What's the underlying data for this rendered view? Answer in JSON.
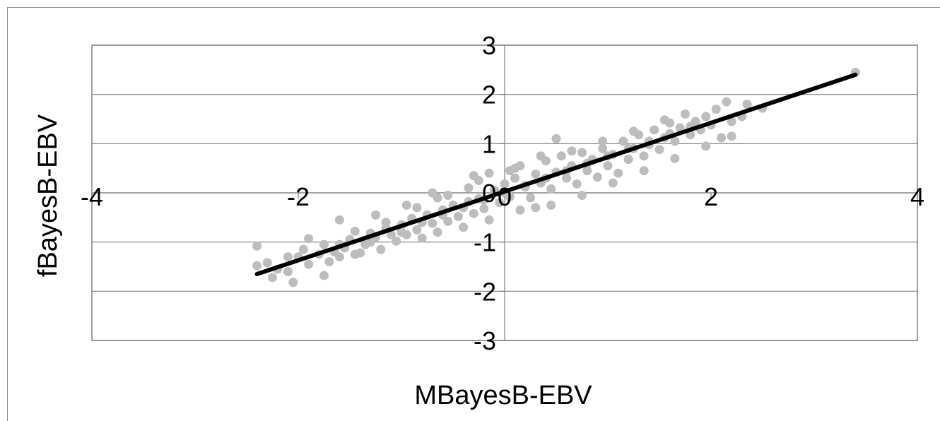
{
  "chart_data": {
    "type": "scatter",
    "xlabel": "MBayesB-EBV",
    "ylabel": "fBayesB-EBV",
    "xlim": [
      -4,
      4
    ],
    "ylim": [
      -3,
      3
    ],
    "x_ticks": [
      -4,
      -2,
      0,
      2,
      4
    ],
    "y_ticks": [
      -3,
      -2,
      -1,
      0,
      1,
      2,
      3
    ],
    "x_tick_labels": [
      "-4",
      "-2",
      "0",
      "2",
      "4"
    ],
    "y_tick_labels": [
      "-3",
      "-2",
      "-1",
      "0",
      "1",
      "2",
      "3"
    ],
    "grid": "horizontal",
    "legend": "none",
    "colors": {
      "points": "#bdbdbd",
      "trend": "#000000",
      "grid": "#808080",
      "axis": "#808080"
    },
    "trend_line": {
      "x": [
        -2.4,
        3.4
      ],
      "y": [
        -1.65,
        2.4
      ]
    },
    "series": [
      {
        "type": "scatter",
        "points": [
          [
            -2.4,
            -1.08
          ],
          [
            -2.4,
            -1.48
          ],
          [
            -2.3,
            -1.42
          ],
          [
            -2.25,
            -1.72
          ],
          [
            -2.2,
            -1.55
          ],
          [
            -2.1,
            -1.6
          ],
          [
            -2.05,
            -1.82
          ],
          [
            -2.1,
            -1.3
          ],
          [
            -1.95,
            -1.15
          ],
          [
            -1.9,
            -0.93
          ],
          [
            -1.8,
            -1.25
          ],
          [
            -1.75,
            -1.68
          ],
          [
            -1.7,
            -1.4
          ],
          [
            -1.65,
            -1.2
          ],
          [
            -1.6,
            -1.05
          ],
          [
            -1.55,
            -1.12
          ],
          [
            -1.5,
            -0.95
          ],
          [
            -1.45,
            -0.78
          ],
          [
            -1.4,
            -1.22
          ],
          [
            -1.35,
            -1.05
          ],
          [
            -1.3,
            -0.82
          ],
          [
            -1.25,
            -0.9
          ],
          [
            -1.2,
            -1.15
          ],
          [
            -1.15,
            -0.72
          ],
          [
            -1.1,
            -0.85
          ],
          [
            -1.05,
            -0.98
          ],
          [
            -1.0,
            -0.65
          ],
          [
            -0.95,
            -0.85
          ],
          [
            -0.9,
            -0.52
          ],
          [
            -0.85,
            -0.75
          ],
          [
            -0.8,
            -0.92
          ],
          [
            -0.75,
            -0.45
          ],
          [
            -0.7,
            -0.62
          ],
          [
            -0.65,
            -0.8
          ],
          [
            -0.6,
            -0.35
          ],
          [
            -0.55,
            -0.58
          ],
          [
            -0.5,
            -0.25
          ],
          [
            -0.45,
            -0.48
          ],
          [
            -0.4,
            -0.7
          ],
          [
            -0.35,
            -0.18
          ],
          [
            -0.3,
            -0.42
          ],
          [
            -0.25,
            -0.12
          ],
          [
            -0.2,
            -0.32
          ],
          [
            -0.15,
            -0.55
          ],
          [
            -0.1,
            0.05
          ],
          [
            -0.05,
            -0.2
          ],
          [
            0.0,
            0.18
          ],
          [
            0.05,
            -0.08
          ],
          [
            0.1,
            0.3
          ],
          [
            0.15,
            0.55
          ],
          [
            0.2,
            0.12
          ],
          [
            0.25,
            -0.1
          ],
          [
            0.3,
            0.38
          ],
          [
            0.35,
            0.2
          ],
          [
            0.4,
            0.65
          ],
          [
            0.45,
            0.08
          ],
          [
            0.5,
            0.42
          ],
          [
            0.55,
            0.75
          ],
          [
            0.6,
            0.3
          ],
          [
            0.65,
            0.55
          ],
          [
            0.7,
            0.18
          ],
          [
            0.75,
            0.82
          ],
          [
            0.8,
            0.45
          ],
          [
            0.85,
            0.68
          ],
          [
            0.9,
            0.32
          ],
          [
            0.95,
            0.9
          ],
          [
            1.0,
            0.55
          ],
          [
            1.05,
            0.78
          ],
          [
            1.1,
            0.4
          ],
          [
            1.15,
            1.05
          ],
          [
            1.2,
            0.68
          ],
          [
            1.25,
            0.9
          ],
          [
            1.3,
            1.18
          ],
          [
            1.35,
            0.75
          ],
          [
            1.4,
            0.98
          ],
          [
            1.45,
            1.28
          ],
          [
            1.5,
            0.88
          ],
          [
            1.55,
            1.12
          ],
          [
            1.6,
            1.42
          ],
          [
            1.65,
            1.05
          ],
          [
            1.7,
            1.32
          ],
          [
            1.75,
            1.6
          ],
          [
            1.8,
            1.18
          ],
          [
            1.85,
            1.45
          ],
          [
            1.9,
            1.28
          ],
          [
            1.95,
            1.55
          ],
          [
            2.0,
            1.38
          ],
          [
            2.05,
            1.7
          ],
          [
            2.1,
            1.12
          ],
          [
            2.15,
            1.85
          ],
          [
            2.2,
            1.45
          ],
          [
            2.3,
            1.55
          ],
          [
            2.35,
            1.8
          ],
          [
            2.5,
            1.72
          ],
          [
            3.4,
            2.45
          ],
          [
            -1.9,
            -1.45
          ],
          [
            -1.6,
            -1.3
          ],
          [
            -1.3,
            -1.0
          ],
          [
            -1.0,
            -0.8
          ],
          [
            -0.8,
            -0.6
          ],
          [
            -0.6,
            -0.45
          ],
          [
            -0.4,
            -0.3
          ],
          [
            -0.2,
            -0.15
          ],
          [
            0.0,
            0.0
          ],
          [
            0.2,
            0.15
          ],
          [
            0.4,
            0.3
          ],
          [
            0.6,
            0.45
          ],
          [
            0.8,
            0.6
          ],
          [
            1.0,
            0.75
          ],
          [
            1.2,
            0.9
          ],
          [
            1.4,
            1.05
          ],
          [
            1.6,
            1.2
          ],
          [
            1.8,
            1.35
          ],
          [
            -1.75,
            -1.05
          ],
          [
            -1.45,
            -1.25
          ],
          [
            -1.15,
            -0.6
          ],
          [
            -0.85,
            -0.3
          ],
          [
            -0.55,
            -0.05
          ],
          [
            -0.25,
            0.25
          ],
          [
            0.05,
            0.45
          ],
          [
            0.35,
            0.75
          ],
          [
            0.65,
            0.85
          ],
          [
            0.95,
            1.05
          ],
          [
            1.25,
            1.25
          ],
          [
            1.55,
            1.48
          ],
          [
            -1.6,
            -0.55
          ],
          [
            -1.25,
            -0.45
          ],
          [
            -0.95,
            -0.25
          ],
          [
            -0.65,
            -0.1
          ],
          [
            -0.35,
            0.1
          ],
          [
            0.15,
            -0.35
          ],
          [
            0.45,
            -0.25
          ],
          [
            0.75,
            -0.05
          ],
          [
            1.05,
            0.2
          ],
          [
            1.35,
            0.45
          ],
          [
            1.65,
            0.7
          ],
          [
            1.95,
            0.95
          ],
          [
            2.2,
            1.15
          ],
          [
            -2.0,
            -1.3
          ],
          [
            -0.3,
            0.35
          ],
          [
            0.5,
            1.1
          ],
          [
            -0.15,
            0.4
          ],
          [
            0.3,
            -0.3
          ],
          [
            0.1,
            0.5
          ],
          [
            -0.7,
            0.0
          ]
        ]
      }
    ]
  }
}
